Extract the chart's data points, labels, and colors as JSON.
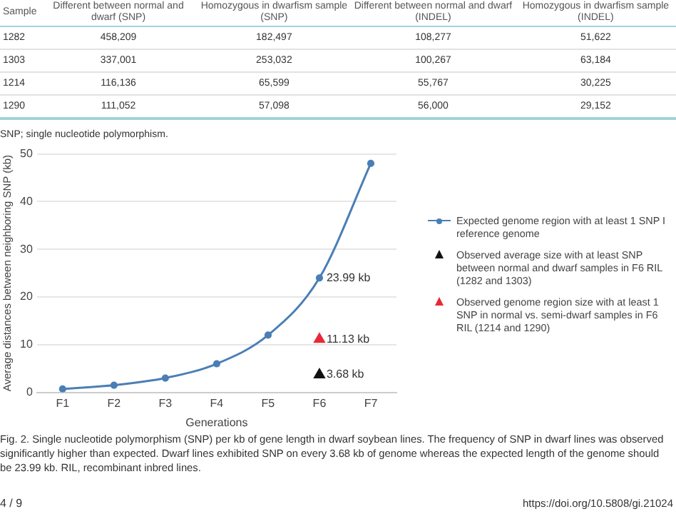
{
  "chart_data": [
    {
      "type": "other",
      "ylabel": "Sample",
      "categories": [
        "Different between normal and dwarf (SNP)",
        "Homozygous in dwarfism sample (SNP)",
        "Different between normal and dwarf (INDEL)",
        "Homozygous in dwarfism sample (INDEL)"
      ],
      "y_categories": [
        "1282",
        "1303",
        "1214",
        "1290"
      ],
      "annotations": [
        "458,209",
        "182,497",
        "108,277",
        "51,622",
        "337,001",
        "253,032",
        "100,267",
        "63,184",
        "116,136",
        "65,599",
        "55,767",
        "30,225",
        "111,052",
        "57,098",
        "56,000",
        "29,152",
        "SNP; single nucleotide polymorphism."
      ]
    },
    {
      "type": "line",
      "xlabel": "Generations",
      "ylabel": "Average distances between neighboring SNP (kb)",
      "categories": [
        "F1",
        "F2",
        "F3",
        "F4",
        "F5",
        "F6",
        "F7"
      ],
      "ylim": [
        0,
        50
      ],
      "yticks": [
        0,
        10,
        20,
        30,
        40,
        50
      ],
      "grid": "y",
      "legend": "right",
      "series": [
        {
          "name": "Expected genome region with at least 1 SNP I reference genome",
          "color": "#4a7fb5",
          "marker": "circle",
          "values": [
            0.7,
            1.5,
            3,
            6,
            12,
            23.99,
            48
          ],
          "value_labels": [
            null,
            null,
            null,
            null,
            null,
            "23.99 kb",
            null
          ]
        },
        {
          "type": "scatter",
          "name": "Observed average size with at least  SNP between normal and dwarf samples in F6 RIL (1282 and 1303)",
          "color": "#111111",
          "marker": "triangle",
          "x": [
            "F6"
          ],
          "values": [
            3.68
          ],
          "value_labels": [
            "3.68 kb"
          ]
        },
        {
          "type": "scatter",
          "name": "Observed genome region size with at least 1 SNP in normal vs. semi-dwarf samples in F6 RIL (1214 and 1290)",
          "color": "#e8283a",
          "marker": "triangle",
          "x": [
            "F6"
          ],
          "values": [
            11.13
          ],
          "value_labels": [
            "11.13 kb"
          ]
        }
      ],
      "annotations": [
        "Fig. 2. Single nucleotide polymorphism (SNP) per kb of gene length in dwarf soybean lines. The frequency of SNP in dwarf lines was observed significantly higher than expected. Dwarf lines exhibited SNP on every 3.68 kb of genome whereas the expected length of the genome should be 23.99 kb. RIL, recombinant inbred lines.",
        "4 / 9",
        "https://doi.org/10.5808/gi.21024"
      ]
    }
  ]
}
